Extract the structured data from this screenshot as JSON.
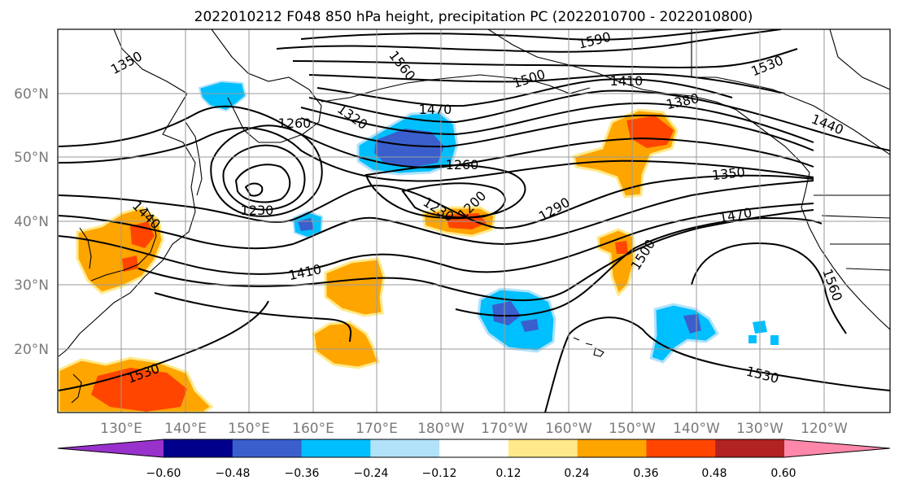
{
  "figure": {
    "title": "2022010212 F048 850 hPa height, precipitation PC (2022010700 - 2022010800)"
  },
  "map": {
    "lon_labels": [
      "130°E",
      "140°E",
      "150°E",
      "160°E",
      "170°E",
      "180°W",
      "170°W",
      "160°W",
      "150°W",
      "140°W",
      "130°W",
      "120°W"
    ],
    "lat_labels": [
      "60°N",
      "50°N",
      "40°N",
      "30°N",
      "20°N"
    ],
    "contour_labels": [
      "1350",
      "1560",
      "1590",
      "1500",
      "1470",
      "1410",
      "1530",
      "1380",
      "1440",
      "1320",
      "1260",
      "1260",
      "1230",
      "1230",
      "1200",
      "1290",
      "1350",
      "1470",
      "1410",
      "1500",
      "1560",
      "1530",
      "1530",
      "1440"
    ]
  },
  "colorbar": {
    "colors": [
      "#9932cc",
      "#00008b",
      "#3a5fcd",
      "#00bfff",
      "#b2e2fa",
      "#ffffff",
      "#ffe98a",
      "#ffa500",
      "#ff4500",
      "#b22222",
      "#ff88aa"
    ],
    "tick_labels": [
      "−0.60",
      "−0.48",
      "−0.36",
      "−0.24",
      "−0.12",
      "0.12",
      "0.24",
      "0.36",
      "0.48",
      "0.60"
    ]
  }
}
